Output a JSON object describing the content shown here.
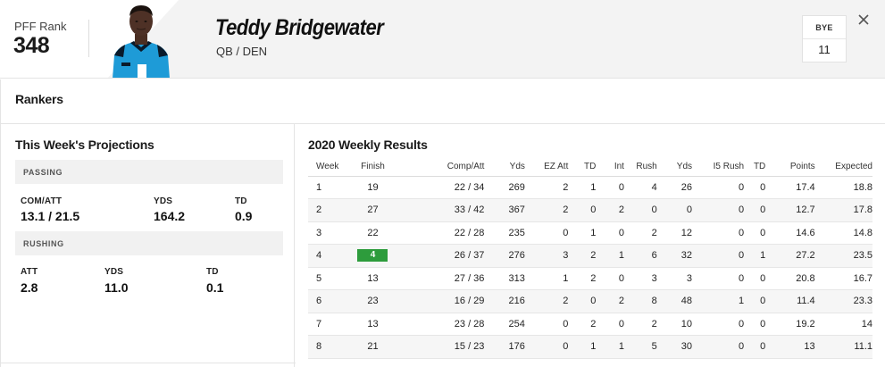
{
  "header": {
    "rank_label": "PFF Rank",
    "rank_value": "348",
    "player_name": "Teddy Bridgewater",
    "player_meta": "QB / DEN",
    "bye_label": "BYE",
    "bye_value": "11",
    "close_icon": "close-icon",
    "colors": {
      "jersey": "#1e9bd7",
      "jersey_trim": "#0a1a2a"
    }
  },
  "rankers": {
    "title": "Rankers"
  },
  "projections": {
    "title": "This Week's Projections",
    "passing": {
      "section_label": "PASSING",
      "comp_att_label": "COM/ATT",
      "comp_att_value": "13.1 / 21.5",
      "yds_label": "YDS",
      "yds_value": "164.2",
      "td_label": "TD",
      "td_value": "0.9"
    },
    "rushing": {
      "section_label": "RUSHING",
      "att_label": "ATT",
      "att_value": "2.8",
      "yds_label": "YDS",
      "yds_value": "11.0",
      "td_label": "TD",
      "td_value": "0.1"
    }
  },
  "results": {
    "title": "2020 Weekly Results",
    "columns": [
      "Week",
      "Finish",
      "Comp/Att",
      "Yds",
      "EZ Att",
      "TD",
      "Int",
      "Rush",
      "Yds",
      "I5 Rush",
      "TD",
      "Points",
      "Expected"
    ],
    "highlight_color": "#2d9c3c",
    "rows": [
      {
        "week": "1",
        "finish": "19",
        "comp_att": "22 / 34",
        "yds": "269",
        "ez_att": "2",
        "td": "1",
        "int": "0",
        "rush": "4",
        "rush_yds": "26",
        "i5_rush": "0",
        "rush_td": "0",
        "points": "17.4",
        "expected": "18.8",
        "highlight": false
      },
      {
        "week": "2",
        "finish": "27",
        "comp_att": "33 / 42",
        "yds": "367",
        "ez_att": "2",
        "td": "0",
        "int": "2",
        "rush": "0",
        "rush_yds": "0",
        "i5_rush": "0",
        "rush_td": "0",
        "points": "12.7",
        "expected": "17.8",
        "highlight": false
      },
      {
        "week": "3",
        "finish": "22",
        "comp_att": "22 / 28",
        "yds": "235",
        "ez_att": "0",
        "td": "1",
        "int": "0",
        "rush": "2",
        "rush_yds": "12",
        "i5_rush": "0",
        "rush_td": "0",
        "points": "14.6",
        "expected": "14.8",
        "highlight": false
      },
      {
        "week": "4",
        "finish": "4",
        "comp_att": "26 / 37",
        "yds": "276",
        "ez_att": "3",
        "td": "2",
        "int": "1",
        "rush": "6",
        "rush_yds": "32",
        "i5_rush": "0",
        "rush_td": "1",
        "points": "27.2",
        "expected": "23.5",
        "highlight": true
      },
      {
        "week": "5",
        "finish": "13",
        "comp_att": "27 / 36",
        "yds": "313",
        "ez_att": "1",
        "td": "2",
        "int": "0",
        "rush": "3",
        "rush_yds": "3",
        "i5_rush": "0",
        "rush_td": "0",
        "points": "20.8",
        "expected": "16.7",
        "highlight": false
      },
      {
        "week": "6",
        "finish": "23",
        "comp_att": "16 / 29",
        "yds": "216",
        "ez_att": "2",
        "td": "0",
        "int": "2",
        "rush": "8",
        "rush_yds": "48",
        "i5_rush": "1",
        "rush_td": "0",
        "points": "11.4",
        "expected": "23.3",
        "highlight": false
      },
      {
        "week": "7",
        "finish": "13",
        "comp_att": "23 / 28",
        "yds": "254",
        "ez_att": "0",
        "td": "2",
        "int": "0",
        "rush": "2",
        "rush_yds": "10",
        "i5_rush": "0",
        "rush_td": "0",
        "points": "19.2",
        "expected": "14",
        "highlight": false
      },
      {
        "week": "8",
        "finish": "21",
        "comp_att": "15 / 23",
        "yds": "176",
        "ez_att": "0",
        "td": "1",
        "int": "1",
        "rush": "5",
        "rush_yds": "30",
        "i5_rush": "0",
        "rush_td": "0",
        "points": "13",
        "expected": "11.1",
        "highlight": false
      }
    ]
  }
}
